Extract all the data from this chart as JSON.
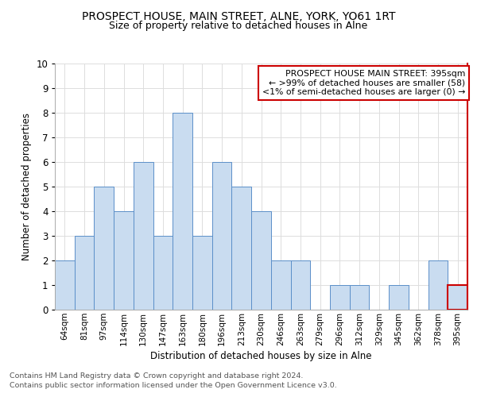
{
  "title": "PROSPECT HOUSE, MAIN STREET, ALNE, YORK, YO61 1RT",
  "subtitle": "Size of property relative to detached houses in Alne",
  "xlabel": "Distribution of detached houses by size in Alne",
  "ylabel": "Number of detached properties",
  "categories": [
    "64sqm",
    "81sqm",
    "97sqm",
    "114sqm",
    "130sqm",
    "147sqm",
    "163sqm",
    "180sqm",
    "196sqm",
    "213sqm",
    "230sqm",
    "246sqm",
    "263sqm",
    "279sqm",
    "296sqm",
    "312sqm",
    "329sqm",
    "345sqm",
    "362sqm",
    "378sqm",
    "395sqm"
  ],
  "values": [
    2,
    3,
    5,
    4,
    6,
    3,
    8,
    3,
    6,
    5,
    4,
    2,
    2,
    0,
    1,
    1,
    0,
    1,
    0,
    2,
    1
  ],
  "bar_color": "#c9dcf0",
  "bar_edge_color": "#5b8fc9",
  "highlight_index": 20,
  "highlight_bar_edge_color": "#cc0000",
  "legend_title": "PROSPECT HOUSE MAIN STREET: 395sqm",
  "legend_line1": "← >99% of detached houses are smaller (58)",
  "legend_line2": "<1% of semi-detached houses are larger (0) →",
  "legend_box_facecolor": "#ffffff",
  "legend_box_edge_color": "#cc0000",
  "right_spine_color": "#cc0000",
  "ylim": [
    0,
    10
  ],
  "footer_line1": "Contains HM Land Registry data © Crown copyright and database right 2024.",
  "footer_line2": "Contains public sector information licensed under the Open Government Licence v3.0.",
  "grid_color": "#dddddd"
}
